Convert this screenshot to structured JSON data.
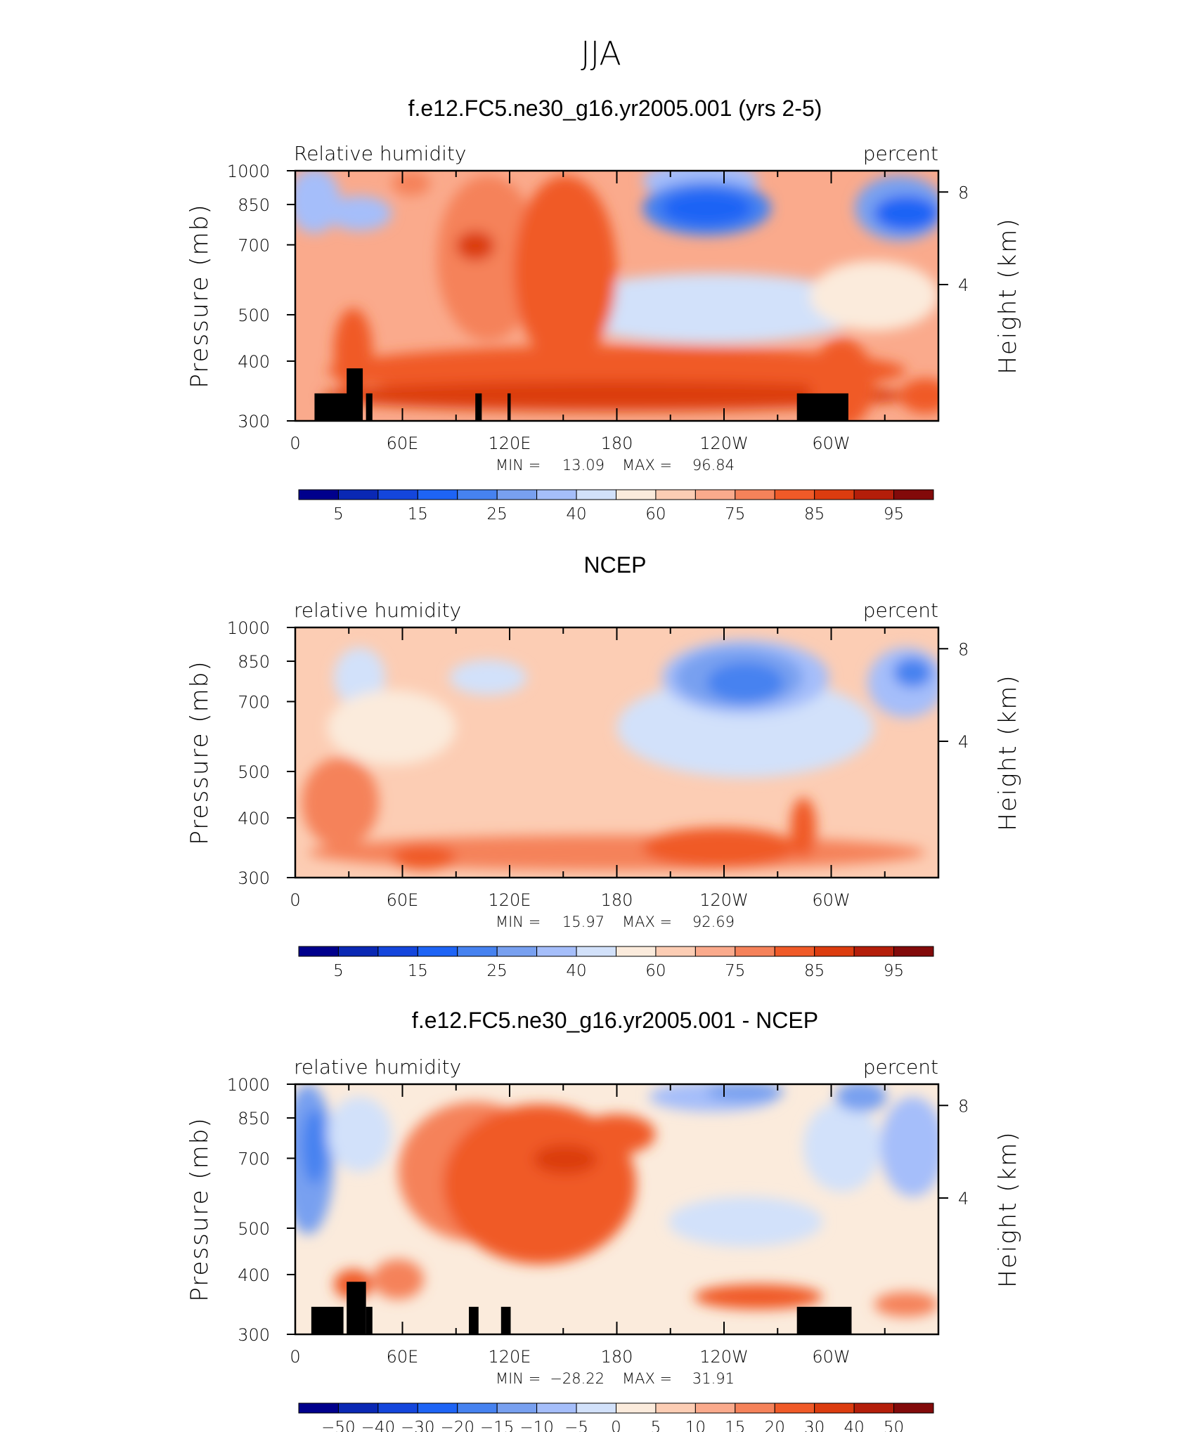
{
  "figure": {
    "title": "JJA"
  },
  "chart_data": [
    {
      "type": "heatmap",
      "title": "f.e12.FC5.ne30_g16.yr2005.001 (yrs 2-5)",
      "left_label": "Relative humidity",
      "right_label": "percent",
      "ylabel": "Pressure (mb)",
      "ylabel_right": "Height (km)",
      "x_ticks": [
        "0",
        "60E",
        "120E",
        "180",
        "120W",
        "60W"
      ],
      "y_ticks": [
        "300",
        "400",
        "500",
        "700",
        "850",
        "1000"
      ],
      "y_right_ticks": [
        "8",
        "4"
      ],
      "min_label": "MIN =",
      "min_value": "13.09",
      "max_label": "MAX =",
      "max_value": "96.84",
      "colorbar_labels": [
        "5",
        "15",
        "25",
        "40",
        "60",
        "75",
        "85",
        "95"
      ]
    },
    {
      "type": "heatmap",
      "title": "NCEP",
      "left_label": "relative humidity",
      "right_label": "percent",
      "ylabel": "Pressure (mb)",
      "ylabel_right": "Height (km)",
      "x_ticks": [
        "0",
        "60E",
        "120E",
        "180",
        "120W",
        "60W"
      ],
      "y_ticks": [
        "300",
        "400",
        "500",
        "700",
        "850",
        "1000"
      ],
      "y_right_ticks": [
        "8",
        "4"
      ],
      "min_label": "MIN =",
      "min_value": "15.97",
      "max_label": "MAX =",
      "max_value": "92.69",
      "colorbar_labels": [
        "5",
        "15",
        "25",
        "40",
        "60",
        "75",
        "85",
        "95"
      ]
    },
    {
      "type": "heatmap",
      "title": "f.e12.FC5.ne30_g16.yr2005.001 - NCEP",
      "left_label": "relative humidity",
      "right_label": "percent",
      "ylabel": "Pressure (mb)",
      "ylabel_right": "Height (km)",
      "x_ticks": [
        "0",
        "60E",
        "120E",
        "180",
        "120W",
        "60W"
      ],
      "y_ticks": [
        "300",
        "400",
        "500",
        "700",
        "850",
        "1000"
      ],
      "y_right_ticks": [
        "8",
        "4"
      ],
      "min_label": "MIN =",
      "min_value": "−28.22",
      "max_label": "MAX =",
      "max_value": "31.91",
      "colorbar_labels": [
        "−50",
        "−40",
        "−30",
        "−20",
        "−15",
        "−10",
        "−5",
        "0",
        "5",
        "10",
        "15",
        "20",
        "30",
        "40",
        "50"
      ]
    }
  ],
  "palette": [
    "#00008c",
    "#0a28b4",
    "#1446dc",
    "#1e64f5",
    "#4682f0",
    "#78a0f0",
    "#a5befa",
    "#d2e1fa",
    "#fbebdc",
    "#fccdb4",
    "#faaa8c",
    "#f5825a",
    "#f05a28",
    "#dc3c0f",
    "#b41e0a",
    "#820a0a"
  ]
}
